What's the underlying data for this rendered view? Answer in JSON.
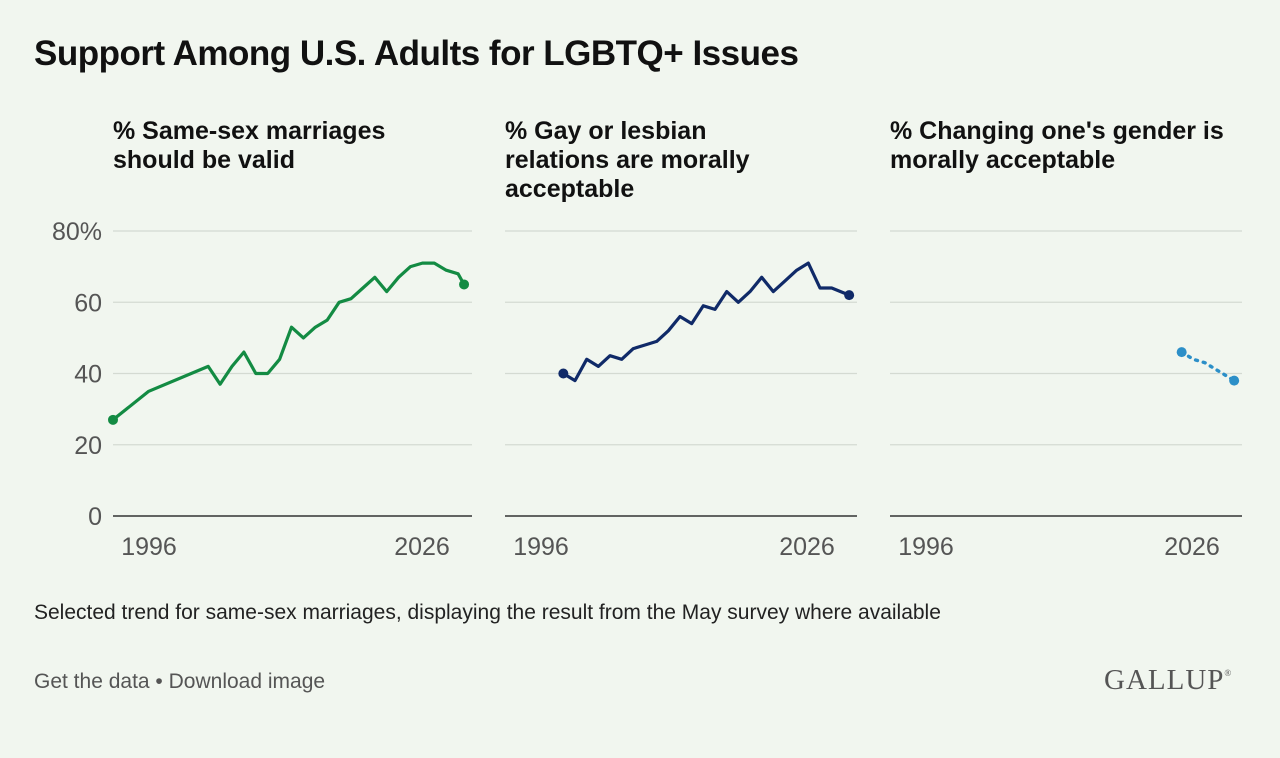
{
  "title": "Support Among U.S. Adults for LGBTQ+ Issues",
  "note": "Selected trend for same-sex marriages, displaying the result from the May survey where available",
  "links": {
    "get_data": "Get the data",
    "separator": " • ",
    "download": "Download image"
  },
  "logo": "GALLUP",
  "chart_data": [
    {
      "type": "line",
      "title": "% Same-sex marriages should be valid",
      "xlim": [
        1996,
        2026
      ],
      "ylim": [
        0,
        80
      ],
      "y_ticks": [
        "80%",
        "60",
        "40",
        "20",
        "0"
      ],
      "x_ticks": [
        "1996",
        "2026"
      ],
      "color": "#138b43",
      "dashed": false,
      "series": [
        {
          "x": [
            1996,
            1999,
            2004,
            2005,
            2006,
            2007,
            2008,
            2009,
            2010,
            2011,
            2012,
            2013,
            2014,
            2015,
            2016,
            2017,
            2018,
            2019,
            2020,
            2021,
            2022,
            2023,
            2024,
            2025
          ],
          "values": [
            27,
            35,
            42,
            37,
            42,
            46,
            40,
            40,
            44,
            53,
            50,
            53,
            55,
            60,
            61,
            64,
            67,
            63,
            67,
            70,
            71,
            71,
            69,
            68
          ]
        }
      ],
      "last_point": {
        "x": 2025.5,
        "value": 65
      }
    },
    {
      "type": "line",
      "title": "% Gay or lesbian relations are morally acceptable",
      "xlim": [
        1996,
        2026
      ],
      "ylim": [
        0,
        80
      ],
      "x_ticks": [
        "1996",
        "2026"
      ],
      "color": "#102a68",
      "dashed": false,
      "series": [
        {
          "x": [
            2001,
            2002,
            2003,
            2004,
            2005,
            2006,
            2007,
            2008,
            2009,
            2010,
            2011,
            2012,
            2013,
            2014,
            2015,
            2016,
            2017,
            2018,
            2019,
            2020,
            2021,
            2022,
            2023,
            2024
          ],
          "values": [
            40,
            38,
            44,
            42,
            45,
            44,
            47,
            48,
            49,
            52,
            56,
            54,
            59,
            58,
            63,
            60,
            63,
            67,
            63,
            66,
            69,
            71,
            64,
            64
          ]
        }
      ],
      "last_point": {
        "x": 2025.5,
        "value": 62
      }
    },
    {
      "type": "line",
      "title": "% Changing one's gender is morally acceptable",
      "xlim": [
        1996,
        2026
      ],
      "ylim": [
        0,
        80
      ],
      "x_ticks": [
        "1996",
        "2026"
      ],
      "color": "#2c8fc8",
      "dashed": true,
      "series": [
        {
          "x": [
            2021,
            2022,
            2023
          ],
          "values": [
            46,
            44,
            43
          ]
        }
      ],
      "last_point": {
        "x": 2025.5,
        "value": 38
      }
    }
  ]
}
